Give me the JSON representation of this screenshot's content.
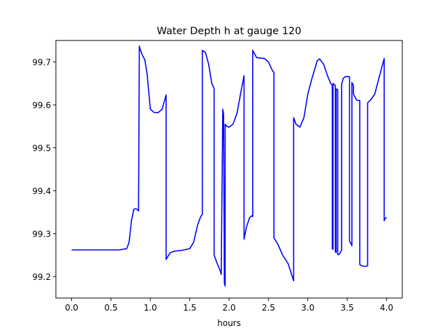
{
  "chart_data": {
    "type": "line",
    "title": "Water Depth h at gauge 120",
    "xlabel": "hours",
    "ylabel": "",
    "xlim": [
      -0.2,
      4.2
    ],
    "ylim": [
      99.15,
      99.75
    ],
    "grid": false,
    "xticks": [
      0.0,
      0.5,
      1.0,
      1.5,
      2.0,
      2.5,
      3.0,
      3.5,
      4.0
    ],
    "xtick_labels": [
      "0.0",
      "0.5",
      "1.0",
      "1.5",
      "2.0",
      "2.5",
      "3.0",
      "3.5",
      "4.0"
    ],
    "yticks": [
      99.2,
      99.3,
      99.4,
      99.5,
      99.6,
      99.7
    ],
    "ytick_labels": [
      "99.2",
      "99.3",
      "99.4",
      "99.5",
      "99.6",
      "99.7"
    ],
    "series": [
      {
        "color": "#0000ff",
        "x": [
          0.0,
          0.3,
          0.6,
          0.7,
          0.73,
          0.76,
          0.79,
          0.82,
          0.85,
          0.86,
          0.87,
          0.9,
          0.93,
          0.96,
          1.0,
          1.05,
          1.1,
          1.15,
          1.18,
          1.2,
          1.2,
          1.25,
          1.3,
          1.4,
          1.5,
          1.55,
          1.6,
          1.64,
          1.66,
          1.66,
          1.7,
          1.74,
          1.78,
          1.81,
          1.81,
          1.85,
          1.89,
          1.9,
          1.92,
          1.93,
          1.94,
          1.95,
          1.95,
          1.97,
          2.0,
          2.05,
          2.1,
          2.15,
          2.19,
          2.19,
          2.22,
          2.26,
          2.29,
          2.3,
          2.3,
          2.35,
          2.45,
          2.5,
          2.55,
          2.57,
          2.57,
          2.62,
          2.68,
          2.75,
          2.82,
          2.82,
          2.85,
          2.9,
          2.95,
          3.0,
          3.05,
          3.12,
          3.15,
          3.2,
          3.25,
          3.29,
          3.31,
          3.31,
          3.32,
          3.32,
          3.35,
          3.35,
          3.36,
          3.36,
          3.38,
          3.38,
          3.4,
          3.43,
          3.43,
          3.45,
          3.48,
          3.52,
          3.53,
          3.53,
          3.56,
          3.56,
          3.58,
          3.58,
          3.62,
          3.66,
          3.66,
          3.7,
          3.74,
          3.76,
          3.76,
          3.8,
          3.85,
          3.9,
          3.97,
          3.97,
          3.98,
          4.0
        ],
        "y": [
          99.262,
          99.262,
          99.262,
          99.265,
          99.28,
          99.33,
          99.357,
          99.358,
          99.353,
          99.737,
          99.73,
          99.715,
          99.705,
          99.67,
          99.59,
          99.582,
          99.582,
          99.59,
          99.61,
          99.623,
          99.24,
          99.255,
          99.259,
          99.261,
          99.265,
          99.28,
          99.32,
          99.34,
          99.345,
          99.727,
          99.722,
          99.695,
          99.65,
          99.638,
          99.25,
          99.23,
          99.212,
          99.205,
          99.59,
          99.578,
          99.185,
          99.178,
          99.555,
          99.55,
          99.548,
          99.555,
          99.58,
          99.63,
          99.668,
          99.287,
          99.315,
          99.337,
          99.342,
          99.34,
          99.727,
          99.71,
          99.708,
          99.7,
          99.68,
          99.675,
          99.29,
          99.275,
          99.25,
          99.23,
          99.19,
          99.57,
          99.555,
          99.548,
          99.57,
          99.625,
          99.66,
          99.703,
          99.707,
          99.695,
          99.668,
          99.65,
          99.645,
          99.266,
          99.263,
          99.65,
          99.645,
          99.257,
          99.256,
          99.637,
          99.636,
          99.251,
          99.252,
          99.262,
          99.648,
          99.662,
          99.666,
          99.666,
          99.665,
          99.283,
          99.272,
          99.652,
          99.645,
          99.625,
          99.611,
          99.61,
          99.228,
          99.224,
          99.224,
          99.225,
          99.605,
          99.612,
          99.625,
          99.66,
          99.708,
          99.33,
          99.335,
          99.338
        ]
      }
    ]
  }
}
